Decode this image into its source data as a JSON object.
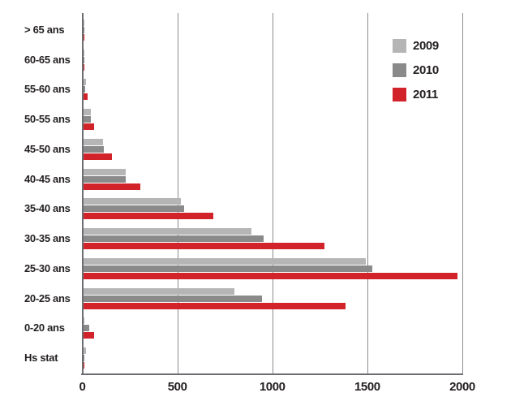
{
  "chart_data": {
    "type": "bar",
    "orientation": "horizontal",
    "title": "",
    "xlabel": "",
    "ylabel": "",
    "categories": [
      "> 65 ans",
      "60-65 ans",
      "55-60 ans",
      "50-55 ans",
      "45-50 ans",
      "40-45 ans",
      "35-40 ans",
      "30-35 ans",
      "25-30 ans",
      "20-25 ans",
      "0-20 ans",
      "Hs stat"
    ],
    "series": [
      {
        "name": "2009",
        "color": "#b5b5b5",
        "values": [
          2,
          3,
          20,
          45,
          107,
          230,
          520,
          890,
          1490,
          800,
          4,
          20
        ]
      },
      {
        "name": "2010",
        "color": "#8a8a8a",
        "values": [
          2,
          2,
          16,
          43,
          115,
          230,
          535,
          955,
          1525,
          945,
          38,
          12
        ]
      },
      {
        "name": "2011",
        "color": "#d2232a",
        "values": [
          5,
          5,
          26,
          60,
          155,
          305,
          690,
          1275,
          1975,
          1385,
          62,
          9
        ]
      }
    ],
    "xlim": [
      0,
      2000
    ],
    "x_ticks": [
      0,
      500,
      1000,
      1500,
      2000
    ],
    "grid": true,
    "legend_position": "top-right",
    "colors": {
      "axis": "#6d6e71",
      "grid": "#8a8c8f",
      "text": "#231f20",
      "background": "#ffffff"
    }
  }
}
